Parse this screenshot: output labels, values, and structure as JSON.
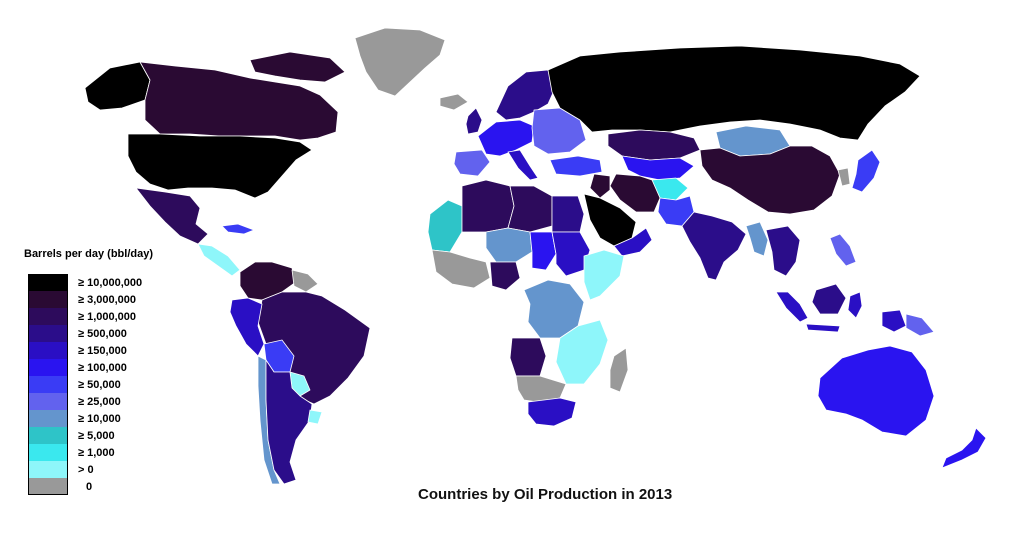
{
  "title": "Countries by Oil Production in 2013",
  "legend": {
    "title": "Barrels per day (bbl/day)",
    "items": [
      {
        "label": "≥ 10,000,000",
        "color": "#000000"
      },
      {
        "label": "≥ 3,000,000",
        "color": "#2a0a33"
      },
      {
        "label": "≥ 1,000,000",
        "color": "#2d0b5c"
      },
      {
        "label": "≥ 500,000",
        "color": "#2b0d8a"
      },
      {
        "label": "≥ 150,000",
        "color": "#2a0fc4"
      },
      {
        "label": "≥ 100,000",
        "color": "#2a14f0"
      },
      {
        "label": "≥ 50,000",
        "color": "#3a3cf5"
      },
      {
        "label": "≥ 25,000",
        "color": "#6262ee"
      },
      {
        "label": "≥ 10,000",
        "color": "#6495cd"
      },
      {
        "label": "≥ 5,000",
        "color": "#2ec4c8"
      },
      {
        "label": "≥ 1,000",
        "color": "#3ae8ee"
      },
      {
        "label": "> 0",
        "color": "#8ef6fa"
      },
      {
        "label": "0",
        "color": "#999999"
      }
    ]
  },
  "regions": [
    {
      "name": "greenland",
      "color": "#999999"
    },
    {
      "name": "canada",
      "color": "#2a0a33"
    },
    {
      "name": "canada-arctic-islands",
      "color": "#2a0a33"
    },
    {
      "name": "alaska",
      "color": "#000000"
    },
    {
      "name": "usa",
      "color": "#000000"
    },
    {
      "name": "mexico",
      "color": "#2d0b5c"
    },
    {
      "name": "central-america",
      "color": "#8ef6fa"
    },
    {
      "name": "cuba",
      "color": "#3a3cf5"
    },
    {
      "name": "colombia-venezuela",
      "color": "#2a0a33"
    },
    {
      "name": "guyana-suriname",
      "color": "#999999"
    },
    {
      "name": "brazil",
      "color": "#2d0b5c"
    },
    {
      "name": "peru-ecuador",
      "color": "#2a0fc4"
    },
    {
      "name": "bolivia",
      "color": "#3a3cf5"
    },
    {
      "name": "paraguay",
      "color": "#8ef6fa"
    },
    {
      "name": "chile",
      "color": "#6495cd"
    },
    {
      "name": "argentina",
      "color": "#2b0d8a"
    },
    {
      "name": "uruguay",
      "color": "#8ef6fa"
    },
    {
      "name": "iceland",
      "color": "#999999"
    },
    {
      "name": "uk",
      "color": "#2b0d8a"
    },
    {
      "name": "scandinavia",
      "color": "#2b0d8a"
    },
    {
      "name": "western-europe",
      "color": "#2a14f0"
    },
    {
      "name": "spain-portugal",
      "color": "#6262ee"
    },
    {
      "name": "italy",
      "color": "#2a0fc4"
    },
    {
      "name": "eastern-europe",
      "color": "#6262ee"
    },
    {
      "name": "turkey",
      "color": "#3a3cf5"
    },
    {
      "name": "russia",
      "color": "#000000"
    },
    {
      "name": "kazakhstan",
      "color": "#2d0b5c"
    },
    {
      "name": "mongolia",
      "color": "#6495cd"
    },
    {
      "name": "china",
      "color": "#2a0a33"
    },
    {
      "name": "central-asia",
      "color": "#2a14f0"
    },
    {
      "name": "afghanistan",
      "color": "#3ae8ee"
    },
    {
      "name": "iran",
      "color": "#2a0a33"
    },
    {
      "name": "iraq",
      "color": "#2a0a33"
    },
    {
      "name": "saudi-arabia",
      "color": "#000000"
    },
    {
      "name": "oman-yemen",
      "color": "#2a0fc4"
    },
    {
      "name": "pakistan",
      "color": "#3a3cf5"
    },
    {
      "name": "india",
      "color": "#2b0d8a"
    },
    {
      "name": "myanmar",
      "color": "#6495cd"
    },
    {
      "name": "thailand-vietnam",
      "color": "#2b0d8a"
    },
    {
      "name": "japan",
      "color": "#3a3cf5"
    },
    {
      "name": "korea",
      "color": "#999999"
    },
    {
      "name": "philippines",
      "color": "#6262ee"
    },
    {
      "name": "indonesia-sumatra",
      "color": "#2a0fc4"
    },
    {
      "name": "borneo",
      "color": "#2b0d8a"
    },
    {
      "name": "java",
      "color": "#2a0fc4"
    },
    {
      "name": "sulawesi",
      "color": "#2a0fc4"
    },
    {
      "name": "new-guinea",
      "color": "#2a0fc4"
    },
    {
      "name": "papua-new-guinea",
      "color": "#6262ee"
    },
    {
      "name": "australia",
      "color": "#2a14f0"
    },
    {
      "name": "new-zealand",
      "color": "#2a14f0"
    },
    {
      "name": "mauritania-western-sahara",
      "color": "#2ec4c8"
    },
    {
      "name": "algeria",
      "color": "#2d0b5c"
    },
    {
      "name": "libya",
      "color": "#2d0b5c"
    },
    {
      "name": "egypt",
      "color": "#2b0d8a"
    },
    {
      "name": "mali-niger",
      "color": "#6495cd"
    },
    {
      "name": "chad",
      "color": "#2a14f0"
    },
    {
      "name": "sudan",
      "color": "#2a0fc4"
    },
    {
      "name": "west-africa",
      "color": "#999999"
    },
    {
      "name": "nigeria",
      "color": "#2d0b5c"
    },
    {
      "name": "ethiopia-somalia",
      "color": "#8ef6fa"
    },
    {
      "name": "drc",
      "color": "#6495cd"
    },
    {
      "name": "angola",
      "color": "#2d0b5c"
    },
    {
      "name": "east-africa",
      "color": "#8ef6fa"
    },
    {
      "name": "southern-africa",
      "color": "#999999"
    },
    {
      "name": "south-africa",
      "color": "#2a0fc4"
    },
    {
      "name": "madagascar",
      "color": "#999999"
    }
  ]
}
